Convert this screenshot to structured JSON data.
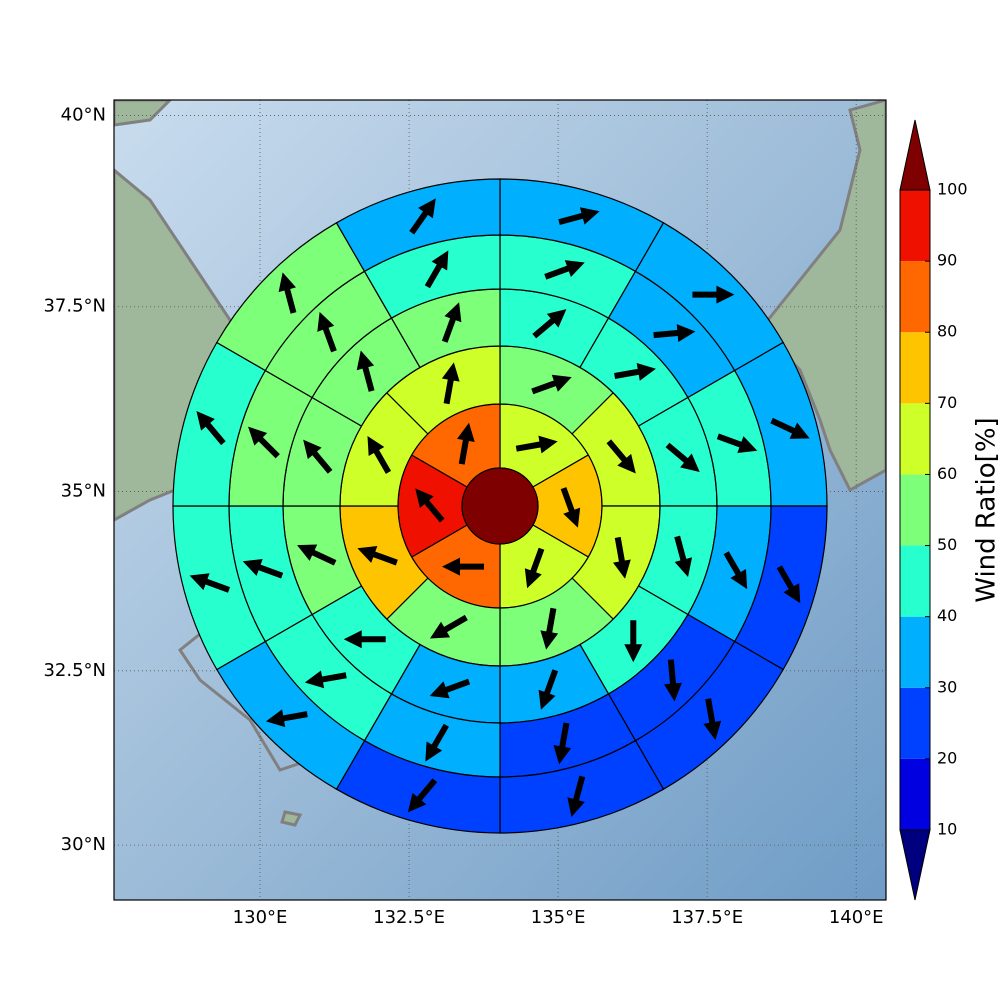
{
  "map": {
    "xlim": [
      127.55,
      140.5
    ],
    "ylim": [
      29.2,
      40.2
    ],
    "xticks": [
      {
        "value": 130,
        "label": "130°E"
      },
      {
        "value": 132.5,
        "label": "132.5°E"
      },
      {
        "value": 135,
        "label": "135°E"
      },
      {
        "value": 137.5,
        "label": "137.5°E"
      },
      {
        "value": 140,
        "label": "140°E"
      }
    ],
    "yticks": [
      {
        "value": 30,
        "label": "30°N"
      },
      {
        "value": 32.5,
        "label": "32.5°N"
      },
      {
        "value": 35,
        "label": "35°N"
      },
      {
        "value": 37.5,
        "label": "37.5°N"
      },
      {
        "value": 40,
        "label": "40°N"
      }
    ],
    "grid": true,
    "center_value": 100,
    "rings": [
      {
        "values": [
          65,
          75,
          65,
          85,
          95,
          85
        ],
        "directions": [
          80,
          160,
          200,
          270,
          320,
          10
        ]
      },
      {
        "values": [
          55,
          65,
          65,
          55,
          55,
          75,
          65,
          65
        ],
        "directions": [
          70,
          140,
          170,
          190,
          240,
          290,
          330,
          10
        ]
      },
      {
        "values": [
          45,
          45,
          45,
          45,
          45,
          35,
          35,
          45,
          55,
          55,
          55,
          55
        ],
        "directions": [
          50,
          80,
          130,
          165,
          180,
          200,
          250,
          270,
          295,
          320,
          345,
          20
        ]
      },
      {
        "values": [
          45,
          35,
          45,
          35,
          25,
          25,
          35,
          45,
          45,
          55,
          55,
          45
        ],
        "directions": [
          70,
          85,
          110,
          150,
          175,
          190,
          210,
          260,
          290,
          315,
          340,
          30
        ]
      },
      {
        "values": [
          35,
          35,
          35,
          25,
          25,
          25,
          25,
          35,
          45,
          45,
          55,
          35
        ],
        "directions": [
          75,
          90,
          115,
          150,
          170,
          195,
          220,
          260,
          290,
          320,
          345,
          35
        ]
      }
    ]
  },
  "colorbar": {
    "label": "Wind Ratio[%]",
    "ticks": [
      10,
      20,
      30,
      40,
      50,
      60,
      70,
      80,
      90,
      100
    ],
    "colors": [
      "#0000e0",
      "#0040ff",
      "#00b0ff",
      "#28ffce",
      "#7dff7a",
      "#ceff28",
      "#ffc400",
      "#ff6800",
      "#f01000"
    ],
    "under": "#00007f",
    "over": "#7f0000"
  }
}
